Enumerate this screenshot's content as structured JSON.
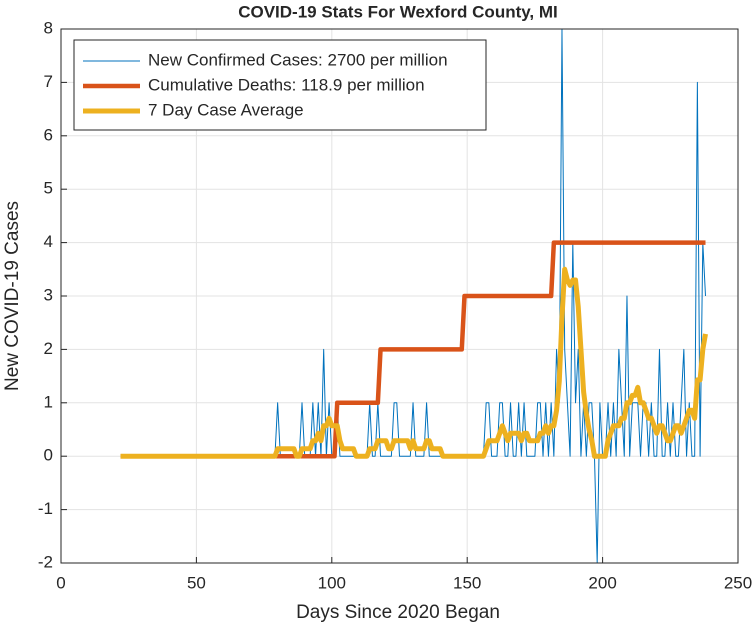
{
  "chart_data": {
    "type": "line",
    "title": "COVID-19 Stats For Wexford County, MI",
    "xlabel": "Days Since 2020 Began",
    "ylabel": "New COVID-19 Cases",
    "xlim": [
      0,
      250
    ],
    "xticks": [
      0,
      50,
      100,
      150,
      200,
      250
    ],
    "ylim": [
      -2,
      8
    ],
    "yticks": [
      -2,
      -1,
      0,
      1,
      2,
      3,
      4,
      5,
      6,
      7,
      8
    ],
    "grid": true,
    "legend": "upper left",
    "x": [
      22,
      23,
      24,
      25,
      26,
      27,
      28,
      29,
      30,
      31,
      32,
      33,
      34,
      35,
      36,
      37,
      38,
      39,
      40,
      41,
      42,
      43,
      44,
      45,
      46,
      47,
      48,
      49,
      50,
      51,
      52,
      53,
      54,
      55,
      56,
      57,
      58,
      59,
      60,
      61,
      62,
      63,
      64,
      65,
      66,
      67,
      68,
      69,
      70,
      71,
      72,
      73,
      74,
      75,
      76,
      77,
      78,
      79,
      80,
      81,
      82,
      83,
      84,
      85,
      86,
      87,
      88,
      89,
      90,
      91,
      92,
      93,
      94,
      95,
      96,
      97,
      98,
      99,
      100,
      101,
      102,
      103,
      104,
      105,
      106,
      107,
      108,
      109,
      110,
      111,
      112,
      113,
      114,
      115,
      116,
      117,
      118,
      119,
      120,
      121,
      122,
      123,
      124,
      125,
      126,
      127,
      128,
      129,
      130,
      131,
      132,
      133,
      134,
      135,
      136,
      137,
      138,
      139,
      140,
      141,
      142,
      143,
      144,
      145,
      146,
      147,
      148,
      149,
      150,
      151,
      152,
      153,
      154,
      155,
      156,
      157,
      158,
      159,
      160,
      161,
      162,
      163,
      164,
      165,
      166,
      167,
      168,
      169,
      170,
      171,
      172,
      173,
      174,
      175,
      176,
      177,
      178,
      179,
      180,
      181,
      182,
      183,
      184,
      185,
      186,
      187,
      188,
      189,
      190,
      191,
      192,
      193,
      194,
      195,
      196,
      197,
      198,
      199,
      200,
      201,
      202,
      203,
      204,
      205,
      206,
      207,
      208,
      209,
      210,
      211,
      212,
      213,
      214,
      215,
      216,
      217,
      218,
      219,
      220,
      221,
      222,
      223,
      224,
      225,
      226,
      227,
      228,
      229,
      230,
      231,
      232,
      233,
      234,
      235,
      236,
      237,
      238
    ],
    "series": [
      {
        "name": "New Confirmed Cases: 2700 per million",
        "color": "#0072BD",
        "width": 1,
        "values": [
          0,
          0,
          0,
          0,
          0,
          0,
          0,
          0,
          0,
          0,
          0,
          0,
          0,
          0,
          0,
          0,
          0,
          0,
          0,
          0,
          0,
          0,
          0,
          0,
          0,
          0,
          0,
          0,
          0,
          0,
          0,
          0,
          0,
          0,
          0,
          0,
          0,
          0,
          0,
          0,
          0,
          0,
          0,
          0,
          0,
          0,
          0,
          0,
          0,
          0,
          0,
          0,
          0,
          0,
          0,
          0,
          0,
          0,
          1,
          0,
          0,
          0,
          0,
          0,
          0,
          0,
          0,
          1,
          0,
          0,
          0,
          1,
          0,
          1,
          0,
          2,
          0,
          1,
          0,
          0,
          1,
          0,
          0,
          0,
          0,
          0,
          0,
          0,
          0,
          0,
          0,
          0,
          1,
          0,
          0,
          1,
          0,
          0,
          0,
          0,
          0,
          1,
          1,
          0,
          0,
          0,
          0,
          0,
          1,
          0,
          0,
          0,
          0,
          1,
          0,
          0,
          0,
          0,
          0,
          0,
          0,
          0,
          0,
          0,
          0,
          0,
          0,
          0,
          0,
          0,
          0,
          0,
          0,
          0,
          0,
          1,
          1,
          0,
          0,
          0,
          1,
          1,
          0,
          0,
          1,
          0,
          0,
          1,
          0,
          1,
          0,
          0,
          0,
          0,
          1,
          1,
          0,
          1,
          0,
          1,
          0,
          2,
          1,
          8,
          2,
          1,
          0,
          4,
          1,
          2,
          0,
          1,
          0,
          1,
          1,
          0,
          -2,
          1,
          0,
          0,
          1,
          0,
          1,
          0,
          2,
          1,
          0,
          3,
          0,
          1,
          1,
          1,
          0,
          1,
          1,
          0,
          1,
          0,
          0,
          2,
          0,
          0,
          1,
          0,
          1,
          0,
          0,
          1,
          2,
          0,
          1,
          0,
          0,
          7,
          0,
          4,
          3
        ]
      },
      {
        "name": "Cumulative Deaths: 118.9 per million",
        "color": "#D95319",
        "width": 4.5,
        "values": [
          0,
          0,
          0,
          0,
          0,
          0,
          0,
          0,
          0,
          0,
          0,
          0,
          0,
          0,
          0,
          0,
          0,
          0,
          0,
          0,
          0,
          0,
          0,
          0,
          0,
          0,
          0,
          0,
          0,
          0,
          0,
          0,
          0,
          0,
          0,
          0,
          0,
          0,
          0,
          0,
          0,
          0,
          0,
          0,
          0,
          0,
          0,
          0,
          0,
          0,
          0,
          0,
          0,
          0,
          0,
          0,
          0,
          0,
          0,
          0,
          0,
          0,
          0,
          0,
          0,
          0,
          0,
          0,
          0,
          0,
          0,
          0,
          0,
          0,
          0,
          0,
          0,
          0,
          0,
          0,
          1,
          1,
          1,
          1,
          1,
          1,
          1,
          1,
          1,
          1,
          1,
          1,
          1,
          1,
          1,
          1,
          2,
          2,
          2,
          2,
          2,
          2,
          2,
          2,
          2,
          2,
          2,
          2,
          2,
          2,
          2,
          2,
          2,
          2,
          2,
          2,
          2,
          2,
          2,
          2,
          2,
          2,
          2,
          2,
          2,
          2,
          2,
          3,
          3,
          3,
          3,
          3,
          3,
          3,
          3,
          3,
          3,
          3,
          3,
          3,
          3,
          3,
          3,
          3,
          3,
          3,
          3,
          3,
          3,
          3,
          3,
          3,
          3,
          3,
          3,
          3,
          3,
          3,
          3,
          3,
          4,
          4,
          4,
          4,
          4,
          4,
          4,
          4,
          4,
          4,
          4,
          4,
          4,
          4,
          4,
          4,
          4,
          4,
          4,
          4,
          4,
          4,
          4,
          4,
          4,
          4,
          4,
          4,
          4,
          4,
          4,
          4,
          4,
          4,
          4,
          4,
          4,
          4,
          4,
          4,
          4,
          4,
          4,
          4,
          4,
          4,
          4,
          4,
          4,
          4,
          4,
          4,
          4,
          4,
          4,
          4,
          4
        ]
      },
      {
        "name": "7 Day Case Average",
        "color": "#EDB120",
        "width": 5,
        "values": [
          0,
          0,
          0,
          0,
          0,
          0,
          0,
          0,
          0,
          0,
          0,
          0,
          0,
          0,
          0,
          0,
          0,
          0,
          0,
          0,
          0,
          0,
          0,
          0,
          0,
          0,
          0,
          0,
          0,
          0,
          0,
          0,
          0,
          0,
          0,
          0,
          0,
          0,
          0,
          0,
          0,
          0,
          0,
          0,
          0,
          0,
          0,
          0,
          0,
          0,
          0,
          0,
          0,
          0,
          0,
          0,
          0,
          0,
          0.14,
          0.14,
          0.14,
          0.14,
          0.14,
          0.14,
          0.14,
          0,
          0,
          0.14,
          0.14,
          0.14,
          0.14,
          0.29,
          0.29,
          0.43,
          0.29,
          0.57,
          0.57,
          0.71,
          0.57,
          0.57,
          0.57,
          0.29,
          0.14,
          0.14,
          0.14,
          0.14,
          0.14,
          0,
          0,
          0,
          0,
          0,
          0.14,
          0.14,
          0.14,
          0.29,
          0.29,
          0.29,
          0.29,
          0.14,
          0.14,
          0.29,
          0.29,
          0.29,
          0.29,
          0.29,
          0.29,
          0.14,
          0.29,
          0.14,
          0.14,
          0.14,
          0.14,
          0.29,
          0.29,
          0.14,
          0.14,
          0.14,
          0.14,
          0,
          0,
          0,
          0,
          0,
          0,
          0,
          0,
          0,
          0,
          0,
          0,
          0,
          0,
          0,
          0,
          0.14,
          0.29,
          0.29,
          0.29,
          0.29,
          0.43,
          0.57,
          0.43,
          0.29,
          0.43,
          0.43,
          0.43,
          0.43,
          0.29,
          0.43,
          0.43,
          0.29,
          0.29,
          0.29,
          0.29,
          0.43,
          0.43,
          0.57,
          0.43,
          0.57,
          0.57,
          0.86,
          1.4,
          2.6,
          3.5,
          3.3,
          3.2,
          3.3,
          3.3,
          2.8,
          2,
          1.2,
          0.8,
          0.5,
          0.3,
          0,
          0,
          0,
          0,
          0,
          0.3,
          0.43,
          0.57,
          0.57,
          0.57,
          0.71,
          0.71,
          1,
          1,
          1.14,
          1.14,
          1.29,
          1,
          1,
          0.86,
          0.71,
          0.71,
          0.57,
          0.43,
          0.57,
          0.57,
          0.43,
          0.29,
          0.29,
          0.43,
          0.57,
          0.57,
          0.43,
          0.57,
          0.71,
          0.86,
          0.86,
          0.71,
          1.43,
          1.43,
          2,
          2.29
        ]
      }
    ]
  }
}
